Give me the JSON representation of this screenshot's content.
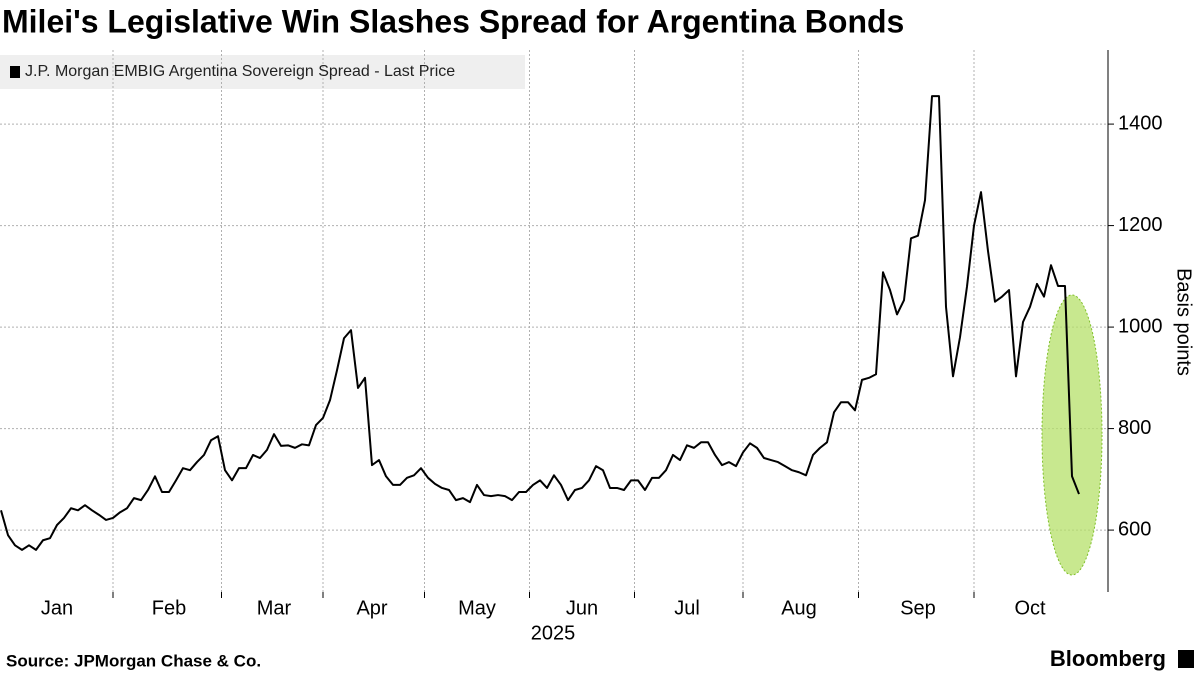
{
  "chart_data": {
    "type": "line",
    "title": "Milei's Legislative Win Slashes Spread for Argentina Bonds",
    "xlabel": "2025",
    "ylabel": "Basis points",
    "source": "Source: JPMorgan Chase & Co.",
    "brand": "Bloomberg",
    "categories": [
      null,
      null,
      null,
      null,
      null,
      null,
      null,
      null,
      "Jan",
      null,
      null,
      null,
      null,
      null,
      null,
      null,
      null,
      null,
      null,
      null,
      null,
      null,
      null,
      null,
      "Feb",
      null,
      null,
      null,
      null,
      null,
      null,
      null,
      null,
      null,
      null,
      null,
      null,
      null,
      null,
      "Mar",
      null,
      null,
      null,
      null,
      null,
      null,
      null,
      null,
      null,
      null,
      null,
      null,
      null,
      "Apr",
      null,
      null,
      null,
      null,
      null,
      null,
      null,
      null,
      null,
      null,
      null,
      null,
      null,
      null,
      "May",
      null,
      null,
      null,
      null,
      null,
      null,
      null,
      null,
      null,
      null,
      null,
      null,
      null,
      null,
      "Jun",
      null,
      null,
      null,
      null,
      null,
      null,
      null,
      null,
      null,
      null,
      null,
      null,
      null,
      null,
      "Jul",
      null,
      null,
      null,
      null,
      null,
      null,
      null,
      null,
      null,
      null,
      null,
      null,
      null,
      null,
      null,
      "Aug",
      null,
      null,
      null,
      null,
      null,
      null,
      null,
      null,
      null,
      null,
      null,
      null,
      null,
      null,
      null,
      null,
      "Sep",
      null,
      null,
      null,
      null,
      null,
      null,
      null,
      null,
      null,
      null,
      null,
      null,
      null,
      null,
      null,
      "Oct",
      null,
      null,
      null,
      null,
      null,
      null,
      null
    ],
    "series": [
      {
        "name": "J.P. Morgan EMBIG Argentina Sovereign Spread - Last Price",
        "color": "#000000",
        "values": [
          639,
          590,
          570,
          561,
          570,
          561,
          580,
          584,
          610,
          624,
          643,
          639,
          649,
          639,
          630,
          620,
          624,
          635,
          643,
          663,
          659,
          679,
          706,
          675,
          675,
          698,
          722,
          718,
          734,
          748,
          777,
          785,
          718,
          698,
          722,
          722,
          748,
          742,
          758,
          789,
          766,
          767,
          762,
          769,
          767,
          807,
          821,
          856,
          915,
          978,
          994,
          880,
          900,
          728,
          738,
          706,
          689,
          689,
          703,
          708,
          722,
          703,
          691,
          683,
          679,
          659,
          663,
          655,
          689,
          669,
          667,
          669,
          667,
          659,
          675,
          675,
          689,
          698,
          683,
          708,
          689,
          659,
          679,
          683,
          698,
          726,
          718,
          683,
          683,
          679,
          698,
          698,
          679,
          703,
          703,
          718,
          748,
          738,
          767,
          762,
          773,
          773,
          748,
          728,
          734,
          726,
          753,
          771,
          762,
          742,
          738,
          734,
          726,
          718,
          714,
          708,
          748,
          762,
          773,
          832,
          852,
          852,
          836,
          896,
          900,
          907,
          1108,
          1073,
          1025,
          1053,
          1175,
          1180,
          1250,
          1455,
          1455,
          1040,
          903,
          980,
          1080,
          1200,
          1266,
          1150,
          1050,
          1060,
          1073,
          903,
          1010,
          1040,
          1085,
          1060,
          1122,
          1081,
          1081,
          706,
          671
        ]
      }
    ],
    "ylim": [
      478,
      1546
    ],
    "yticks": [
      600,
      800,
      1000,
      1200,
      1400
    ],
    "grid": true,
    "legend": "top-left",
    "highlight_color": "#b5e06a"
  }
}
